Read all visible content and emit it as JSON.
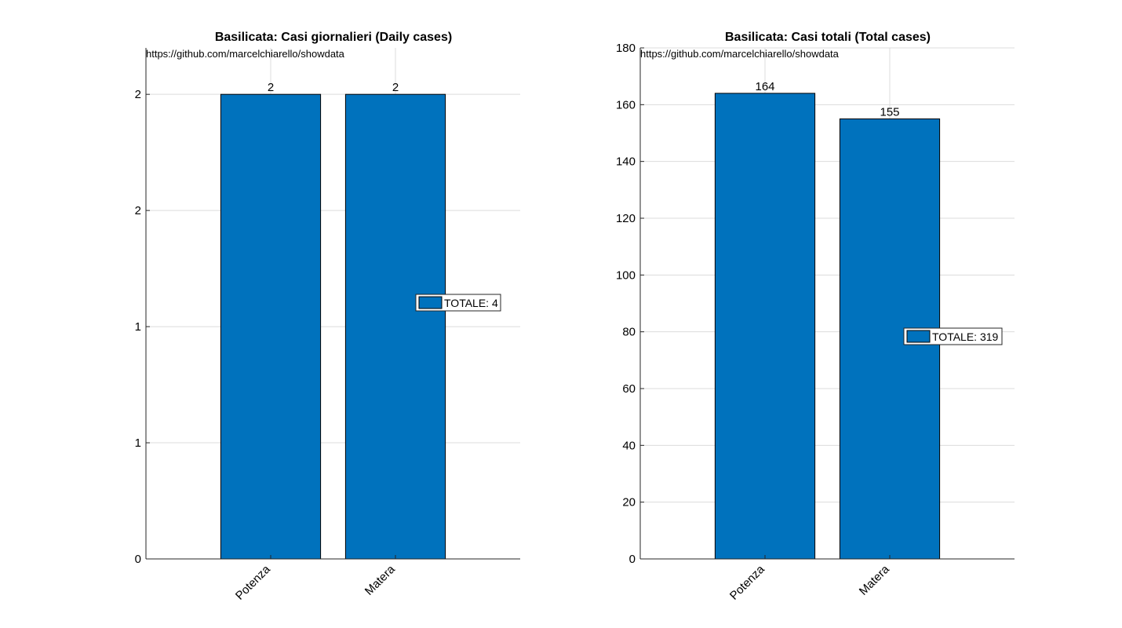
{
  "colors": {
    "bar": "#0072BD",
    "grid": "#dcdcdc",
    "axis": "#262626"
  },
  "chart_data": [
    {
      "type": "bar",
      "title": "Basilicata: Casi giornalieri (Daily cases)",
      "annotation": "https://github.com/marcelchiarello/showdata",
      "categories": [
        "Potenza",
        "Matera"
      ],
      "values": [
        2,
        2
      ],
      "data_labels": [
        "2",
        "2"
      ],
      "ylim": [
        0,
        2.2
      ],
      "yticks": [
        0,
        0.5,
        1,
        1.5,
        2
      ],
      "ytick_labels": [
        "0",
        "1",
        "1",
        "2",
        "2"
      ],
      "legend": {
        "label": "TOTALE: 4",
        "position": "right"
      },
      "grid": true,
      "xlabel": "",
      "ylabel": ""
    },
    {
      "type": "bar",
      "title": "Basilicata: Casi totali (Total cases)",
      "annotation": "https://github.com/marcelchiarello/showdata",
      "categories": [
        "Potenza",
        "Matera"
      ],
      "values": [
        164,
        155
      ],
      "data_labels": [
        "164",
        "155"
      ],
      "ylim": [
        0,
        180
      ],
      "yticks": [
        0,
        20,
        40,
        60,
        80,
        100,
        120,
        140,
        160,
        180
      ],
      "ytick_labels": [
        "0",
        "20",
        "40",
        "60",
        "80",
        "100",
        "120",
        "140",
        "160",
        "180"
      ],
      "legend": {
        "label": "TOTALE: 319",
        "position": "right"
      },
      "grid": true,
      "xlabel": "",
      "ylabel": ""
    }
  ]
}
